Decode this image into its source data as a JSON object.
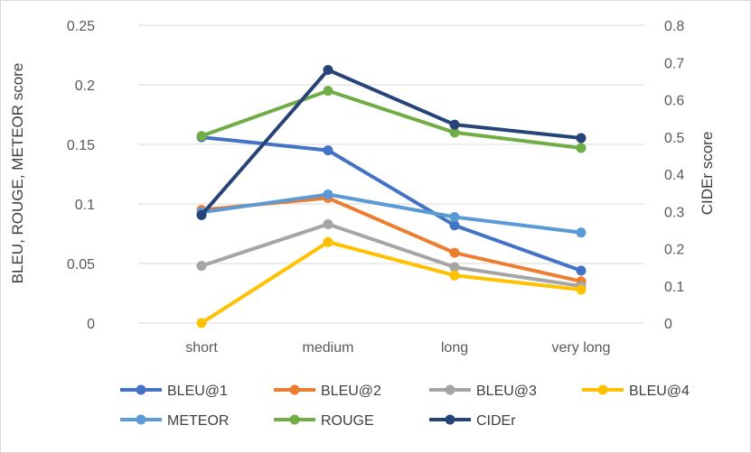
{
  "chart_data": {
    "type": "line",
    "categories": [
      "short",
      "medium",
      "long",
      "very long"
    ],
    "ylabel": "BLEU, ROUGE, METEOR score",
    "y2label": "CIDEr score",
    "ylim": [
      0,
      0.25
    ],
    "y2lim": [
      0,
      0.8
    ],
    "yticks": [
      "0",
      "0.05",
      "0.1",
      "0.15",
      "0.2",
      "0.25"
    ],
    "y2ticks": [
      "0",
      "0.1",
      "0.2",
      "0.3",
      "0.4",
      "0.5",
      "0.6",
      "0.7",
      "0.8"
    ],
    "grid": "horizontal",
    "legend_position": "bottom",
    "series": [
      {
        "name": "BLEU@1",
        "axis": "left",
        "color": "#4472C4",
        "values": [
          0.156,
          0.145,
          0.082,
          0.044
        ]
      },
      {
        "name": "BLEU@2",
        "axis": "left",
        "color": "#ED7D31",
        "values": [
          0.095,
          0.105,
          0.059,
          0.035
        ]
      },
      {
        "name": "BLEU@3",
        "axis": "left",
        "color": "#A5A5A5",
        "values": [
          0.048,
          0.083,
          0.047,
          0.031
        ]
      },
      {
        "name": "BLEU@4",
        "axis": "left",
        "color": "#FFC000",
        "values": [
          0.0,
          0.068,
          0.04,
          0.028
        ]
      },
      {
        "name": "METEOR",
        "axis": "left",
        "color": "#5B9BD5",
        "values": [
          0.093,
          0.108,
          0.089,
          0.076
        ]
      },
      {
        "name": "ROUGE",
        "axis": "left",
        "color": "#70AD47",
        "values": [
          0.157,
          0.195,
          0.16,
          0.147
        ]
      },
      {
        "name": "CIDEr",
        "axis": "right",
        "color": "#264478",
        "values": [
          0.29,
          0.68,
          0.533,
          0.497
        ]
      }
    ]
  }
}
